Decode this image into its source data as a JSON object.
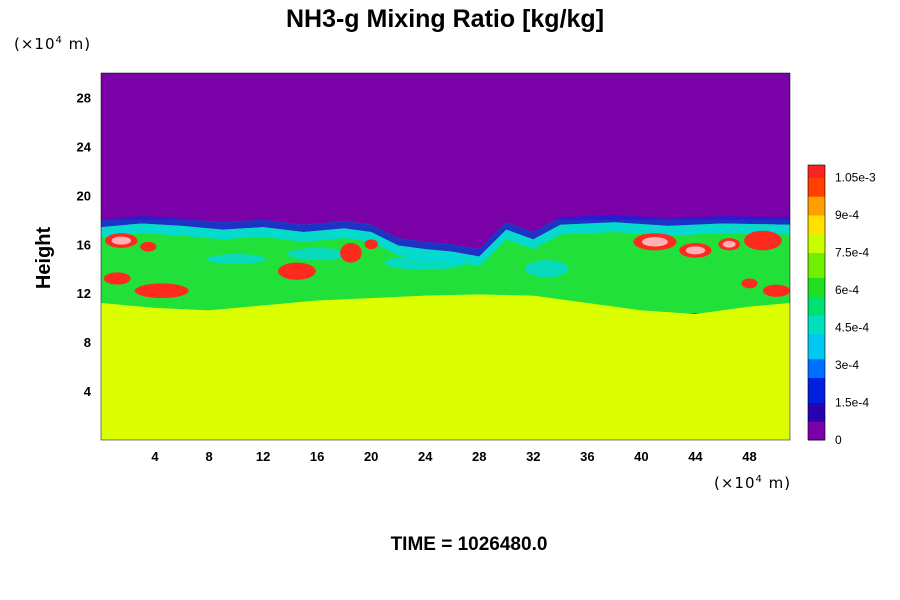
{
  "chart_data": {
    "type": "heatmap",
    "title": "NH3-g Mixing Ratio [kg/kg]",
    "ylabel": "Height",
    "x_unit": {
      "prefix": "(×10",
      "exponent": "4",
      "suffix": " m)"
    },
    "y_unit": {
      "prefix": "(×10",
      "exponent": "4",
      "suffix": " m)"
    },
    "x_ticks": [
      "4",
      "8",
      "12",
      "16",
      "20",
      "24",
      "28",
      "32",
      "36",
      "40",
      "44",
      "48"
    ],
    "y_ticks": [
      "4",
      "8",
      "12",
      "16",
      "20",
      "24",
      "28"
    ],
    "xlim": [
      0,
      51
    ],
    "ylim": [
      0,
      30
    ],
    "colorbar": {
      "min": 0,
      "max": 0.0011,
      "labels": [
        "1.05e-3",
        "9e-4",
        "7.5e-4",
        "6e-4",
        "4.5e-4",
        "3e-4",
        "1.5e-4",
        "0"
      ],
      "label_values": [
        0.00105,
        0.0009,
        0.00075,
        0.0006,
        0.00045,
        0.0003,
        0.00015,
        0
      ]
    },
    "regions": {
      "upper_value": 0,
      "lower_value": 0.00077,
      "lower_layer_top_height": 11,
      "mixed_layer_top_height": 18,
      "mixed_layer_description": "turbulent band 11–18 with values 1.5e-4 to >1.05e-3"
    },
    "colors": {
      "zero": "#7a00a8",
      "low": "#1f1fd6",
      "cyan": "#00d8e8",
      "green": "#22e03a",
      "yellow_green": "#dcff00",
      "red": "#ff2a1e",
      "pink": "#ffb0b8"
    }
  },
  "footer": {
    "time_label": "TIME = 1026480.0"
  }
}
